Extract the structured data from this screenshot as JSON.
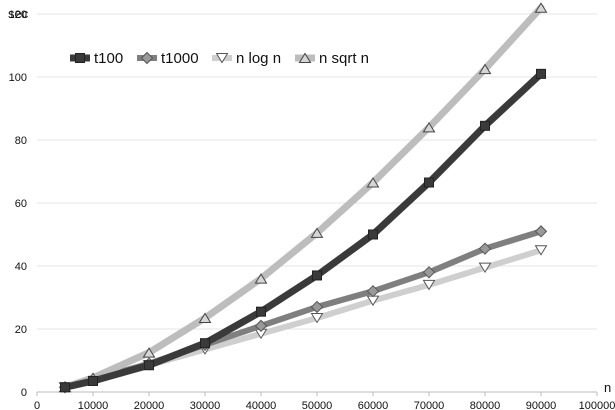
{
  "chart_data": {
    "type": "line",
    "title": "",
    "xlabel": "n",
    "ylabel": "sec",
    "xlim": [
      0,
      100000
    ],
    "ylim": [
      0,
      120
    ],
    "x_ticks": [
      0,
      10000,
      20000,
      30000,
      40000,
      50000,
      60000,
      70000,
      80000,
      90000,
      100000
    ],
    "y_ticks": [
      0,
      20,
      40,
      60,
      80,
      100,
      120
    ],
    "grid": "horizontal",
    "legend_position": "top-left",
    "series": [
      {
        "name": "t100",
        "color": "#3a3a3a",
        "marker": "square",
        "x": [
          5000,
          10000,
          20000,
          30000,
          40000,
          50000,
          60000,
          70000,
          80000,
          90000
        ],
        "y": [
          1.5,
          3.5,
          8.5,
          15.5,
          25.5,
          37,
          50,
          66.5,
          84.5,
          101
        ]
      },
      {
        "name": "t1000",
        "color": "#7f7f7f",
        "marker": "diamond",
        "x": [
          5000,
          10000,
          20000,
          30000,
          40000,
          50000,
          60000,
          70000,
          80000,
          90000
        ],
        "y": [
          1.5,
          4,
          9,
          15,
          21,
          27,
          32,
          38,
          45.5,
          51
        ]
      },
      {
        "name": "n log n",
        "color": "#cfcfcf",
        "marker": "triangle-down",
        "x": [
          5000,
          10000,
          20000,
          30000,
          40000,
          50000,
          60000,
          70000,
          80000,
          90000
        ],
        "y": [
          1.5,
          3.5,
          8.5,
          13.5,
          18.5,
          23.5,
          29,
          34,
          39.5,
          45
        ]
      },
      {
        "name": "n sqrt n",
        "color": "#bdbdbd",
        "marker": "triangle-up",
        "x": [
          5000,
          10000,
          20000,
          30000,
          40000,
          50000,
          60000,
          70000,
          80000,
          90000
        ],
        "y": [
          1.5,
          4.5,
          12.5,
          23.5,
          36,
          50.5,
          66.5,
          84,
          102.5,
          122
        ]
      }
    ]
  }
}
